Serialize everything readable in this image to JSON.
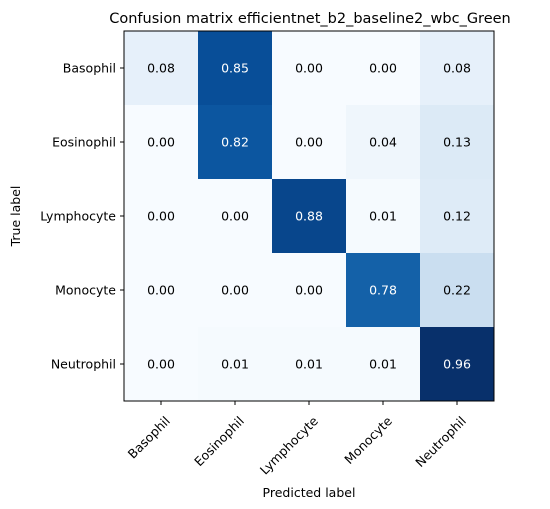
{
  "chart_data": {
    "type": "heatmap",
    "title": "Confusion matrix efficientnet_b2_baseline2_wbc_Green",
    "xlabel": "Predicted label",
    "ylabel": "True label",
    "x_categories": [
      "Basophil",
      "Eosinophil",
      "Lymphocyte",
      "Monocyte",
      "Neutrophil"
    ],
    "y_categories": [
      "Basophil",
      "Eosinophil",
      "Lymphocyte",
      "Monocyte",
      "Neutrophil"
    ],
    "values": [
      [
        0.08,
        0.85,
        0.0,
        0.0,
        0.08
      ],
      [
        0.0,
        0.82,
        0.0,
        0.04,
        0.13
      ],
      [
        0.0,
        0.0,
        0.88,
        0.01,
        0.12
      ],
      [
        0.0,
        0.0,
        0.0,
        0.78,
        0.22
      ],
      [
        0.0,
        0.01,
        0.01,
        0.01,
        0.96
      ]
    ],
    "value_labels": [
      [
        "0.08",
        "0.85",
        "0.00",
        "0.00",
        "0.08"
      ],
      [
        "0.00",
        "0.82",
        "0.00",
        "0.04",
        "0.13"
      ],
      [
        "0.00",
        "0.00",
        "0.88",
        "0.01",
        "0.12"
      ],
      [
        "0.00",
        "0.00",
        "0.00",
        "0.78",
        "0.22"
      ],
      [
        "0.00",
        "0.01",
        "0.01",
        "0.01",
        "0.96"
      ]
    ],
    "colormap": "Blues",
    "grid": false
  }
}
